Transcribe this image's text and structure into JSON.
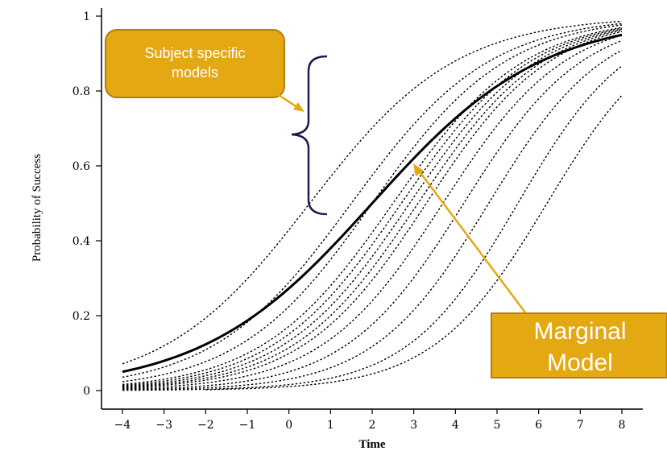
{
  "chart_data": {
    "type": "line",
    "xlabel": "Time",
    "ylabel": "Probability of Success",
    "xlim": [
      -4,
      8
    ],
    "ylim": [
      0,
      1
    ],
    "x_ticks": [
      "−4",
      "−3",
      "−2",
      "−1",
      "0",
      "1",
      "2",
      "3",
      "4",
      "5",
      "6",
      "7",
      "8"
    ],
    "y_ticks": [
      "0",
      "0.2",
      "0.4",
      "0.6",
      "0.8",
      "1"
    ],
    "model": "logistic",
    "series": [
      {
        "kind": "subject",
        "style": "dotted",
        "midpoint": 0.5,
        "slope": 0.57,
        "x_range": [
          -4,
          8
        ]
      },
      {
        "kind": "subject",
        "style": "dotted",
        "midpoint": 1.5,
        "slope": 0.6,
        "x_range": [
          -4,
          8
        ]
      },
      {
        "kind": "subject",
        "style": "dotted",
        "midpoint": 2.0,
        "slope": 0.62,
        "x_range": [
          -4,
          8
        ]
      },
      {
        "kind": "subject",
        "style": "dotted",
        "midpoint": 2.5,
        "slope": 0.63,
        "x_range": [
          -4,
          8
        ]
      },
      {
        "kind": "subject",
        "style": "dotted",
        "midpoint": 2.7,
        "slope": 0.64,
        "x_range": [
          -4,
          8
        ]
      },
      {
        "kind": "subject",
        "style": "dotted",
        "midpoint": 2.9,
        "slope": 0.65,
        "x_range": [
          -4,
          8
        ]
      },
      {
        "kind": "subject",
        "style": "dotted",
        "midpoint": 3.1,
        "slope": 0.66,
        "x_range": [
          -4,
          8
        ]
      },
      {
        "kind": "subject",
        "style": "dotted",
        "midpoint": 3.3,
        "slope": 0.67,
        "x_range": [
          -4,
          8
        ]
      },
      {
        "kind": "subject",
        "style": "dotted",
        "midpoint": 3.7,
        "slope": 0.68,
        "x_range": [
          -4,
          8
        ]
      },
      {
        "kind": "subject",
        "style": "dotted",
        "midpoint": 4.2,
        "slope": 0.7,
        "x_range": [
          -4,
          8
        ]
      },
      {
        "kind": "subject",
        "style": "dotted",
        "midpoint": 4.8,
        "slope": 0.72,
        "x_range": [
          -4,
          8
        ]
      },
      {
        "kind": "subject",
        "style": "dotted",
        "midpoint": 5.5,
        "slope": 0.75,
        "x_range": [
          -4,
          8
        ]
      },
      {
        "kind": "subject",
        "style": "dotted",
        "midpoint": 6.2,
        "slope": 0.73,
        "x_range": [
          -2,
          8
        ]
      },
      {
        "kind": "marginal",
        "style": "solid",
        "midpoint": 2.0,
        "slope": 0.49,
        "x_range": [
          -4,
          8
        ]
      }
    ],
    "annotations": {
      "subject_label": "Subject specific models",
      "marginal_label": "Marginal Model"
    }
  },
  "colors": {
    "axis": "#000000",
    "curve": "#000000",
    "callout_fill": "#e3a812",
    "callout_border": "#b57d0a",
    "callout_text": "#ffffff",
    "brace": "#1e1b4f",
    "arrow": "#e3a812"
  },
  "callouts": {
    "subject_line1": "Subject specific",
    "subject_line2": "models",
    "marginal_line1": "Marginal",
    "marginal_line2": "Model"
  }
}
